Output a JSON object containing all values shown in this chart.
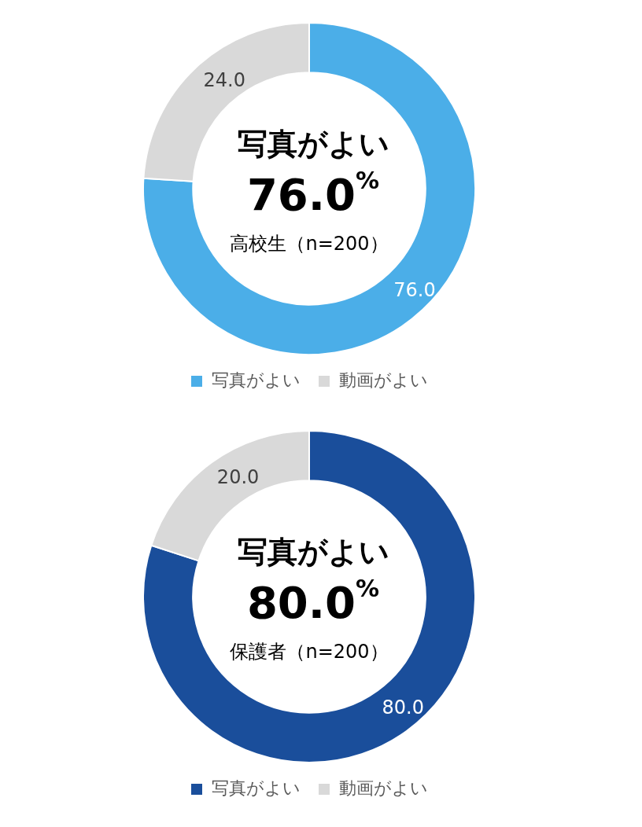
{
  "chart_data": [
    {
      "type": "donut",
      "categories": [
        "写真がよい",
        "動画がよい"
      ],
      "values": [
        76.0,
        24.0
      ],
      "colors": [
        "#4baee8",
        "#d9d9d9"
      ],
      "value_labels": [
        "76.0",
        "24.0"
      ],
      "legend": "bottom",
      "annotations": [
        "写真がよい",
        "76.0$^{%}$",
        "高校生（n=200）"
      ]
    },
    {
      "type": "donut",
      "categories": [
        "写真がよい",
        "動画がよい"
      ],
      "values": [
        80.0,
        20.0
      ],
      "colors": [
        "#1a4e9b",
        "#d9d9d9"
      ],
      "value_labels": [
        "80.0",
        "20.0"
      ],
      "legend": "bottom",
      "annotations": [
        "写真がよい",
        "80.0$^{%}$",
        "保護者（n=200）"
      ]
    }
  ]
}
